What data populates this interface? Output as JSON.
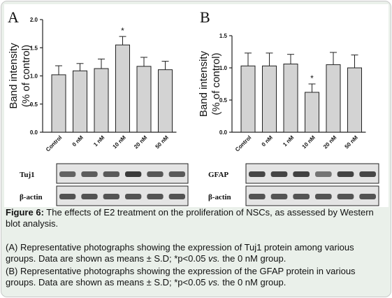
{
  "chart_data": [
    {
      "type": "bar",
      "panel": "A",
      "categories": [
        "Control",
        "0 nM",
        "1 nM",
        "10 nM",
        "20 nM",
        "50 nM"
      ],
      "values": [
        1.02,
        1.09,
        1.13,
        1.55,
        1.17,
        1.11
      ],
      "errors": [
        0.16,
        0.13,
        0.17,
        0.15,
        0.16,
        0.15
      ],
      "significance": [
        "",
        "",
        "",
        "*",
        "",
        ""
      ],
      "ylabel_line1": "Band intensity",
      "ylabel_line2": "(% of control)",
      "ylim": [
        0,
        2.0
      ],
      "yticks": [
        "0.0",
        "0.5",
        "1.0",
        "1.5",
        "2.0"
      ],
      "grid": false,
      "bar_color": "#d3d3d3",
      "blot_labels": [
        "Tuj1",
        "β-actin"
      ]
    },
    {
      "type": "bar",
      "panel": "B",
      "categories": [
        "Control",
        "0 nM",
        "1 nM",
        "10 nM",
        "20 nM",
        "50 nM"
      ],
      "values": [
        1.03,
        1.03,
        1.06,
        0.62,
        1.05,
        1.0
      ],
      "errors": [
        0.2,
        0.2,
        0.15,
        0.13,
        0.19,
        0.2
      ],
      "significance": [
        "",
        "",
        "",
        "*",
        "",
        ""
      ],
      "ylabel_line1": "Band intensity",
      "ylabel_line2": "(% of control)",
      "ylim": [
        0,
        1.5
      ],
      "yticks": [
        "0.0",
        "0.5",
        "1.0",
        "1.5"
      ],
      "grid": false,
      "bar_color": "#d3d3d3",
      "blot_labels": [
        "GFAP",
        "β-actin"
      ]
    }
  ],
  "caption": {
    "figure_label": "Figure 6:",
    "figure_text": " The effects of E2 treatment on the proliferation of NSCs, as assessed by Western blot analysis.",
    "a_text1": "(A) Representative photographs showing the expression of Tuj1 protein among various groups. Data are shown as means ± S.D; *p<0.05 ",
    "a_vs": "vs.",
    "a_text2": " the 0 nM group.",
    "b_text1": "(B) Representative photographs showing the expression of the GFAP protein in various groups. Data are shown as means ± S.D; *p<0.05 ",
    "b_vs": "vs.",
    "b_text2": " the 0 nM group."
  },
  "colors": {
    "panel_background": "#eaf0ea",
    "border": "#c9c9c9",
    "blot_band": "#3a3a3a"
  }
}
